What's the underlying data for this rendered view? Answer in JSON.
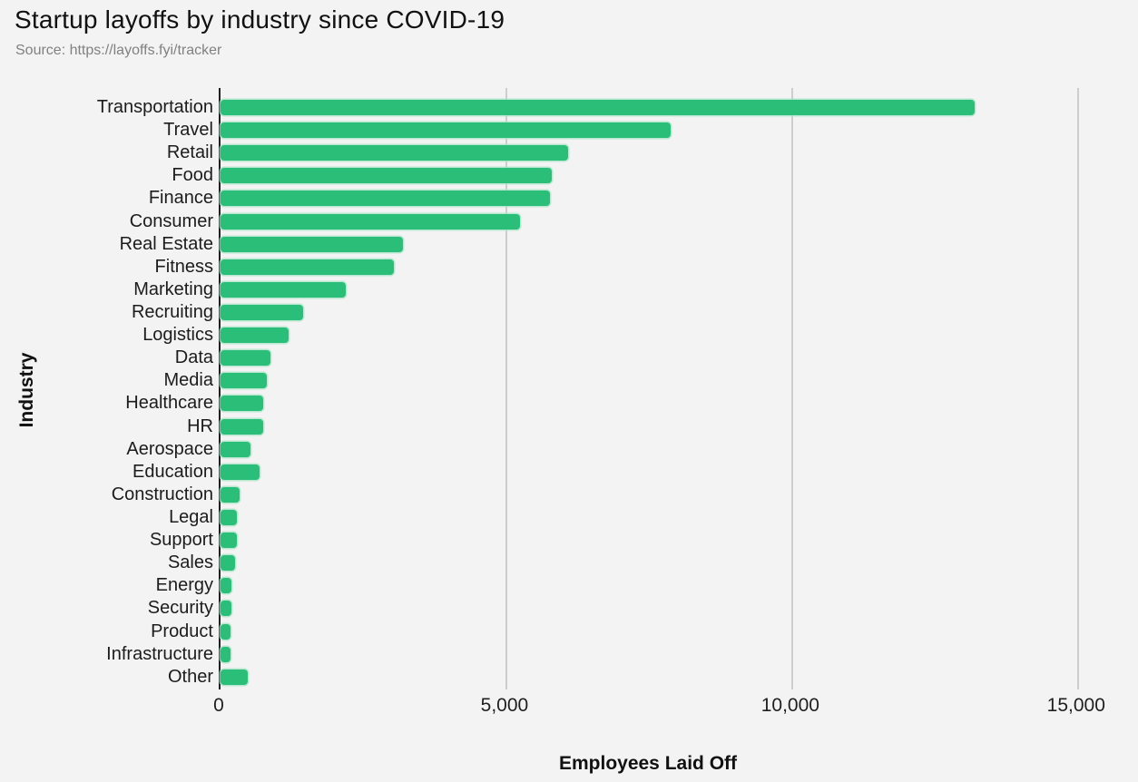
{
  "chart_data": {
    "type": "bar",
    "orientation": "horizontal",
    "title": "Startup layoffs by industry since COVID-19",
    "source": "Source: https://layoffs.fyi/tracker",
    "xlabel": "Employees Laid Off",
    "ylabel": "Industry",
    "categories": [
      "Transportation",
      "Travel",
      "Retail",
      "Food",
      "Finance",
      "Consumer",
      "Real Estate",
      "Fitness",
      "Marketing",
      "Recruiting",
      "Logistics",
      "Data",
      "Media",
      "Healthcare",
      "HR",
      "Aerospace",
      "Education",
      "Construction",
      "Legal",
      "Support",
      "Sales",
      "Energy",
      "Security",
      "Product",
      "Infrastructure",
      "Other"
    ],
    "values": [
      13190,
      7870,
      6080,
      5790,
      5760,
      5240,
      3190,
      3040,
      2190,
      1445,
      1195,
      875,
      805,
      740,
      740,
      520,
      680,
      330,
      280,
      280,
      250,
      185,
      185,
      170,
      170,
      470
    ],
    "xticks": [
      {
        "value": 0,
        "label": "0"
      },
      {
        "value": 5000,
        "label": "5,000"
      },
      {
        "value": 10000,
        "label": "10,000"
      },
      {
        "value": 15000,
        "label": "15,000"
      }
    ],
    "xlim": [
      0,
      15670
    ],
    "grid": "vertical-only",
    "legend": "none",
    "colors": {
      "bar": "#2bbe79",
      "bar_outline": "#a7e3c5",
      "gridline": "#cdcdcd",
      "axis_line": "#202020",
      "background": "#f2f3f2",
      "title_text": "#111111",
      "source_text": "#818181",
      "label_text": "#1c1c1c"
    }
  }
}
